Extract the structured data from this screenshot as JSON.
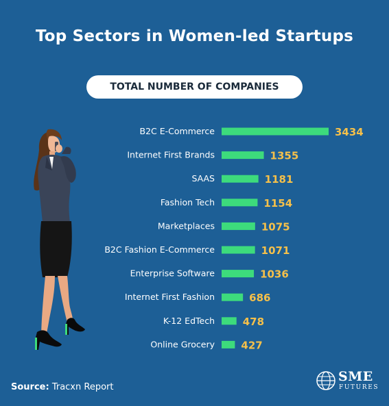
{
  "title": "Top Sectors in Women-led Startups",
  "subtitle": "TOTAL NUMBER OF COMPANIES",
  "source": {
    "label": "Source:",
    "value": " Tracxn Report"
  },
  "logo": {
    "line1": "SME",
    "line2": "FUTURES"
  },
  "colors": {
    "background": "#1d5f96",
    "bar": "#3ddb7c",
    "value": "#f5c04a",
    "label": "#ffffff"
  },
  "chart_data": {
    "type": "bar",
    "orientation": "horizontal",
    "categories": [
      "B2C E-Commerce",
      "Internet First Brands",
      "SAAS",
      "Fashion Tech",
      "Marketplaces",
      "B2C Fashion E-Commerce",
      "Enterprise Software",
      "Internet First Fashion",
      "K-12 EdTech",
      "Online Grocery"
    ],
    "values": [
      3434,
      1355,
      1181,
      1154,
      1075,
      1071,
      1036,
      686,
      478,
      427
    ],
    "data_labels": [
      "3434",
      "1355",
      "1181",
      "1154",
      "1075",
      "1071",
      "1036",
      "686",
      "478",
      "427"
    ],
    "xlim": [
      0,
      3434
    ],
    "grid": false,
    "legend": "none"
  }
}
